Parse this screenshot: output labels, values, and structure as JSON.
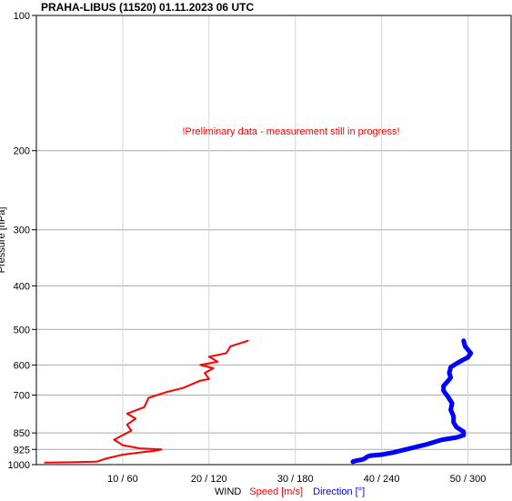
{
  "chart_data": {
    "type": "line",
    "title": "PRAHA-LIBUS (11520)    01.11.2023 06 UTC",
    "annotation": "!Preliminary data - measurement still in progress!",
    "ylabel": "Pressure [hPa]",
    "y_scale": "log",
    "y_inverted": true,
    "ylim": [
      100,
      1000
    ],
    "y_ticks": [
      100,
      200,
      300,
      400,
      500,
      600,
      700,
      850,
      925,
      1000
    ],
    "xlim": [
      0,
      55
    ],
    "x_ticks": [
      10,
      20,
      30,
      40,
      50
    ],
    "x_tick_labels": [
      "10 / 60",
      "20 / 120",
      "30 / 180",
      "40 / 240",
      "50 / 300"
    ],
    "xlabel_parts": [
      {
        "text": "WIND",
        "color": "#000000"
      },
      {
        "text": "Speed [m/s]",
        "color": "#ff0000"
      },
      {
        "text": "Direction [°]",
        "color": "#0000ff"
      }
    ],
    "grid": true,
    "series": [
      {
        "name": "Speed [m/s]",
        "color": "#ff0000",
        "units": "m/s",
        "points": [
          [
            1,
            990
          ],
          [
            4,
            988
          ],
          [
            7,
            985
          ],
          [
            8,
            970
          ],
          [
            10,
            950
          ],
          [
            14,
            930
          ],
          [
            14.5,
            925
          ],
          [
            12,
            920
          ],
          [
            10,
            905
          ],
          [
            9,
            880
          ],
          [
            10,
            860
          ],
          [
            11,
            840
          ],
          [
            10.5,
            815
          ],
          [
            11.5,
            790
          ],
          [
            10.5,
            770
          ],
          [
            12.5,
            745
          ],
          [
            13,
            710
          ],
          [
            15,
            690
          ],
          [
            17,
            675
          ],
          [
            19,
            650
          ],
          [
            20,
            645
          ],
          [
            19.5,
            625
          ],
          [
            20.5,
            610
          ],
          [
            19,
            600
          ],
          [
            21,
            590
          ],
          [
            20,
            575
          ],
          [
            22,
            565
          ],
          [
            22.5,
            545
          ],
          [
            24.5,
            530
          ]
        ]
      },
      {
        "name": "Direction [°]",
        "color": "#0000ff",
        "units": "deg",
        "points": [
          [
            220,
            985
          ],
          [
            222,
            980
          ],
          [
            226,
            975
          ],
          [
            228,
            970
          ],
          [
            230,
            960
          ],
          [
            232,
            955
          ],
          [
            240,
            950
          ],
          [
            248,
            940
          ],
          [
            260,
            920
          ],
          [
            272,
            900
          ],
          [
            282,
            880
          ],
          [
            292,
            870
          ],
          [
            297,
            860
          ],
          [
            297,
            845
          ],
          [
            292,
            825
          ],
          [
            290,
            805
          ],
          [
            290,
            780
          ],
          [
            288,
            755
          ],
          [
            289,
            730
          ],
          [
            286,
            705
          ],
          [
            283,
            685
          ],
          [
            283,
            668
          ],
          [
            286,
            652
          ],
          [
            288,
            640
          ],
          [
            287,
            625
          ],
          [
            288,
            607
          ],
          [
            293,
            593
          ],
          [
            296,
            586
          ],
          [
            300,
            577
          ],
          [
            302,
            565
          ],
          [
            298,
            545
          ],
          [
            297,
            530
          ]
        ]
      }
    ]
  }
}
